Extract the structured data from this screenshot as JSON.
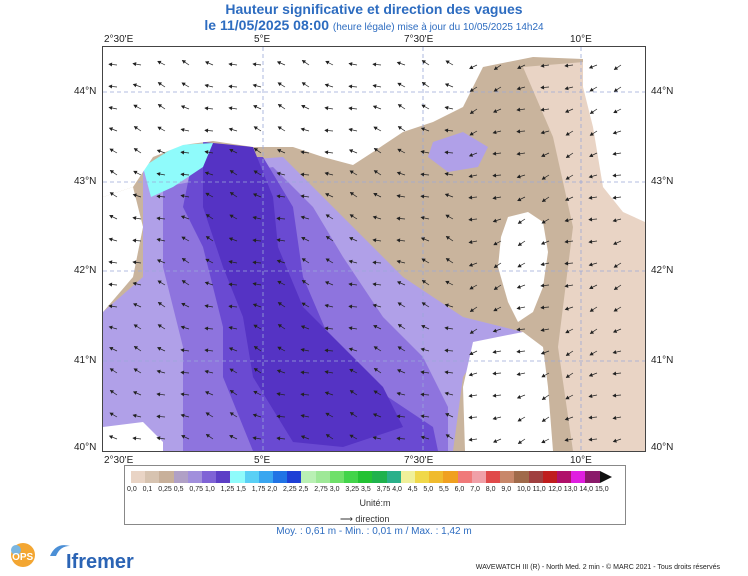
{
  "title_line1": "Hauteur significative et direction des vagues",
  "title_line2_main": "le 11/05/2025 08:00",
  "title_line2_note": "(heure légale) mise à jour du 10/05/2025 14h24",
  "lon_labels": [
    "2°30'E",
    "5°E",
    "7°30'E",
    "10°E"
  ],
  "lat_labels": [
    "44°N",
    "43°N",
    "42°N",
    "41°N",
    "40°N"
  ],
  "legend": {
    "colors": [
      "#e9d4c5",
      "#d7c3b0",
      "#c8b09a",
      "#b0a0c6",
      "#a18fdc",
      "#7f63d6",
      "#5d3fc6",
      "#8ffbfb",
      "#5ad0f5",
      "#3aa6f0",
      "#2173e5",
      "#1e3fd5",
      "#b9f0b4",
      "#9ee897",
      "#6fe06a",
      "#42d44a",
      "#22c233",
      "#1fb24d",
      "#2ab08a",
      "#f0f09a",
      "#f0d84a",
      "#f0bb2e",
      "#f0a020",
      "#f07a7a",
      "#f0a0a8",
      "#e04a4a",
      "#c8876a",
      "#a06a4a",
      "#a04040",
      "#c01e1e",
      "#b0106a",
      "#e01ee0",
      "#8a1a6a"
    ],
    "labels": [
      "0,0",
      "0,1",
      "0,25",
      "0,5",
      "0,75",
      "1,0",
      "1,25",
      "1,5",
      "1,75",
      "2,0",
      "2,25",
      "2,5",
      "2,75",
      "3,0",
      "3,25",
      "3,5",
      "3,75",
      "4,0",
      "4,5",
      "5,0",
      "5,5",
      "6,0",
      "7,0",
      "8,0",
      "9,0",
      "10,0",
      "11,0",
      "12,0",
      "13,0",
      "14,0",
      "15,0"
    ],
    "unit": "Unité:m",
    "direction_label": "direction"
  },
  "stats": "Moy. : 0,61 m   -   Min. : 0,01 m / Max. : 1,42 m",
  "credit": "WAVEWATCH III (R) - North Med. 2 min - © MARC 2021 - Tous droits réservés",
  "logo_lops": "LOPS",
  "logo_ifremer": "Ifremer"
}
